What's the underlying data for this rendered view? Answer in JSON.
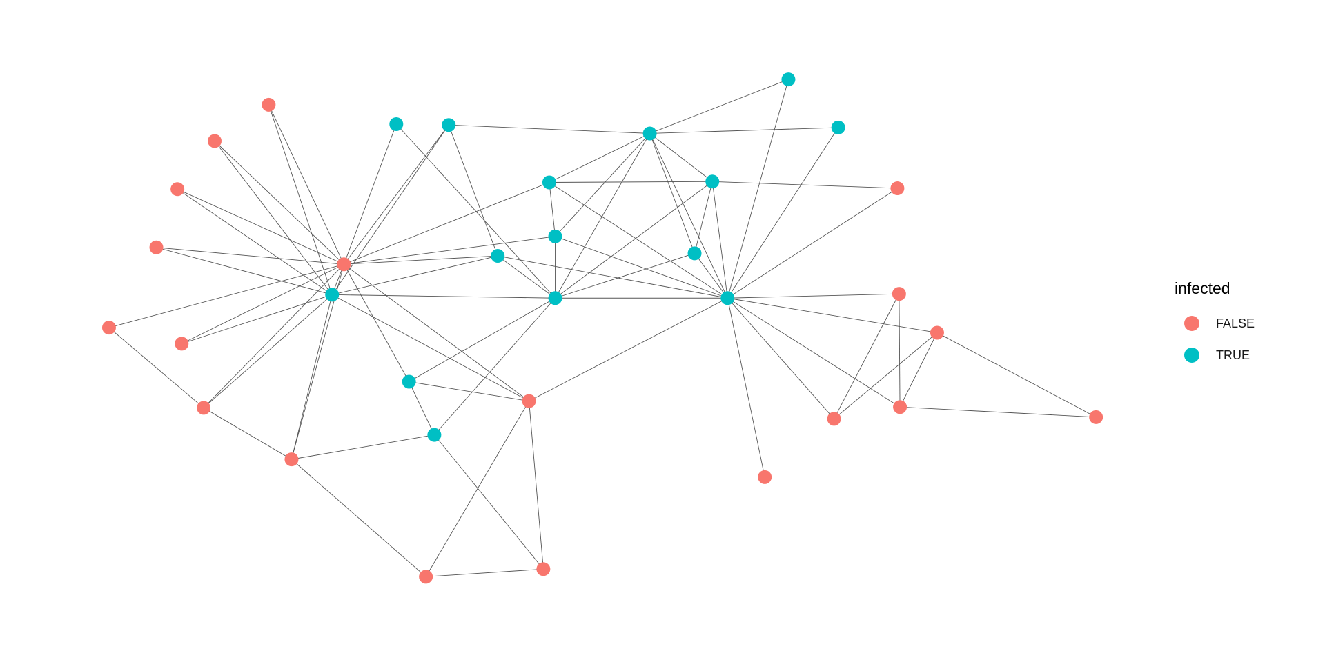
{
  "legend": {
    "title": "infected",
    "items": [
      {
        "label": "FALSE",
        "color": "#F8766D"
      },
      {
        "label": "TRUE",
        "color": "#00BFC4"
      }
    ]
  },
  "edge_color": "#555555",
  "nodes": [
    {
      "id": "R1",
      "infected": false
    },
    {
      "id": "R2",
      "infected": false
    },
    {
      "id": "R3",
      "infected": false
    },
    {
      "id": "R4",
      "infected": false
    },
    {
      "id": "R5",
      "infected": false
    },
    {
      "id": "R6",
      "infected": false
    },
    {
      "id": "R7",
      "infected": false
    },
    {
      "id": "R8",
      "infected": false
    },
    {
      "id": "R9",
      "infected": false
    },
    {
      "id": "R10",
      "infected": false
    },
    {
      "id": "R11",
      "infected": false
    },
    {
      "id": "R12",
      "infected": false
    },
    {
      "id": "R13",
      "infected": false
    },
    {
      "id": "R14",
      "infected": false
    },
    {
      "id": "R15",
      "infected": false
    },
    {
      "id": "R16",
      "infected": false
    },
    {
      "id": "R17",
      "infected": false
    },
    {
      "id": "R18",
      "infected": false
    },
    {
      "id": "R19",
      "infected": false
    },
    {
      "id": "T1",
      "infected": true
    },
    {
      "id": "T2",
      "infected": true
    },
    {
      "id": "T3",
      "infected": true
    },
    {
      "id": "T4",
      "infected": true
    },
    {
      "id": "T5",
      "infected": true
    },
    {
      "id": "T6",
      "infected": true
    },
    {
      "id": "T7",
      "infected": true
    },
    {
      "id": "T8",
      "infected": true
    },
    {
      "id": "T9",
      "infected": true
    },
    {
      "id": "T10",
      "infected": true
    },
    {
      "id": "T11",
      "infected": true
    },
    {
      "id": "T12",
      "infected": true
    },
    {
      "id": "T13",
      "infected": true
    },
    {
      "id": "T14",
      "infected": true
    },
    {
      "id": "T15",
      "infected": true
    }
  ],
  "edges": [
    [
      "R1",
      "R5"
    ],
    [
      "R1",
      "T11"
    ],
    [
      "R2",
      "R5"
    ],
    [
      "R2",
      "T11"
    ],
    [
      "R3",
      "R5"
    ],
    [
      "R3",
      "T11"
    ],
    [
      "R4",
      "R5"
    ],
    [
      "R4",
      "T11"
    ],
    [
      "R6",
      "R5"
    ],
    [
      "R6",
      "R8"
    ],
    [
      "R7",
      "R5"
    ],
    [
      "R7",
      "T11"
    ],
    [
      "R8",
      "R5"
    ],
    [
      "R8",
      "T11"
    ],
    [
      "R8",
      "R9"
    ],
    [
      "R9",
      "T11"
    ],
    [
      "R9",
      "R5"
    ],
    [
      "R9",
      "T15"
    ],
    [
      "R9",
      "R11"
    ],
    [
      "T2",
      "R5"
    ],
    [
      "T2",
      "T12"
    ],
    [
      "T3",
      "R5"
    ],
    [
      "T3",
      "T11"
    ],
    [
      "T3",
      "T9"
    ],
    [
      "T3",
      "T4"
    ],
    [
      "R5",
      "T6"
    ],
    [
      "R5",
      "T8"
    ],
    [
      "R5",
      "T9"
    ],
    [
      "R5",
      "T14"
    ],
    [
      "R5",
      "R10"
    ],
    [
      "R5",
      "T11"
    ],
    [
      "T11",
      "R10"
    ],
    [
      "T11",
      "T9"
    ],
    [
      "T11",
      "T12"
    ],
    [
      "T9",
      "T12"
    ],
    [
      "T9",
      "T13"
    ],
    [
      "T14",
      "T12"
    ],
    [
      "T14",
      "R10"
    ],
    [
      "T14",
      "T15"
    ],
    [
      "T15",
      "T12"
    ],
    [
      "T15",
      "R12"
    ],
    [
      "R10",
      "T13"
    ],
    [
      "R10",
      "R11"
    ],
    [
      "R10",
      "R12"
    ],
    [
      "R11",
      "R12"
    ],
    [
      "T4",
      "T1"
    ],
    [
      "T4",
      "T5"
    ],
    [
      "T4",
      "T6"
    ],
    [
      "T4",
      "T8"
    ],
    [
      "T4",
      "T12"
    ],
    [
      "T4",
      "T7"
    ],
    [
      "T4",
      "T10"
    ],
    [
      "T4",
      "T13"
    ],
    [
      "T6",
      "T7"
    ],
    [
      "T6",
      "T8"
    ],
    [
      "T6",
      "T13"
    ],
    [
      "T7",
      "R13"
    ],
    [
      "T7",
      "T12"
    ],
    [
      "T7",
      "T10"
    ],
    [
      "T7",
      "T13"
    ],
    [
      "T8",
      "T12"
    ],
    [
      "T8",
      "T13"
    ],
    [
      "T10",
      "T12"
    ],
    [
      "T10",
      "T13"
    ],
    [
      "T13",
      "T1"
    ],
    [
      "T13",
      "T5"
    ],
    [
      "T13",
      "R13"
    ],
    [
      "T13",
      "R14"
    ],
    [
      "T13",
      "R15"
    ],
    [
      "T13",
      "R16"
    ],
    [
      "T13",
      "R17"
    ],
    [
      "T13",
      "R19"
    ],
    [
      "T13",
      "T12"
    ],
    [
      "R14",
      "R16"
    ],
    [
      "R14",
      "R17"
    ],
    [
      "R15",
      "R16"
    ],
    [
      "R15",
      "R17"
    ],
    [
      "R15",
      "R18"
    ],
    [
      "R17",
      "R18"
    ]
  ]
}
